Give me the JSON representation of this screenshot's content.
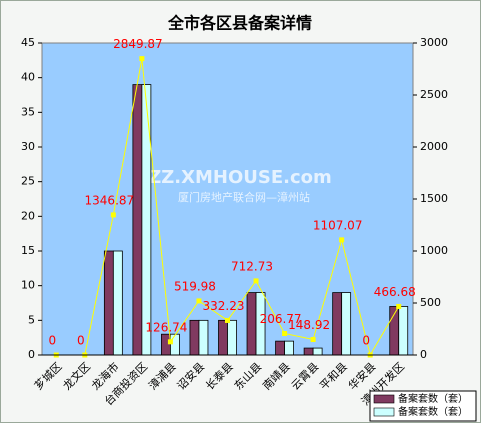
{
  "chart_data": {
    "type": "bar_line",
    "title": "全市各区县备案详情",
    "watermark": [
      "ZZ.XMHOUSE.com",
      "厦门房地产联合网—漳州站"
    ],
    "categories": [
      "芗城区",
      "龙文区",
      "龙海市",
      "台商投资区",
      "漳浦县",
      "诏安县",
      "长泰县",
      "东山县",
      "南靖县",
      "云霄县",
      "平和县",
      "华安县",
      "漳州开发区"
    ],
    "series": [
      {
        "name": "备案套数（套）",
        "type": "bar",
        "color": "#803a60",
        "values": [
          0,
          0,
          15,
          39,
          3,
          5,
          5,
          9,
          2,
          1,
          9,
          0,
          7
        ]
      },
      {
        "name": "备案套数（套）",
        "type": "bar",
        "color": "#ccffff",
        "values": [
          0,
          0,
          15,
          39,
          3,
          5,
          5,
          9,
          2,
          1,
          9,
          0,
          7
        ]
      },
      {
        "type": "line",
        "axis": "y2",
        "color": "#ffff00",
        "label_color": "#ff0000",
        "values": [
          0,
          0,
          1346.87,
          2849.87,
          126.74,
          519.98,
          332.23,
          712.73,
          206.77,
          148.92,
          1107.07,
          0,
          466.68
        ]
      }
    ],
    "ylim": [
      0,
      45
    ],
    "yticks": [
      0,
      5,
      10,
      15,
      20,
      25,
      30,
      35,
      40,
      45
    ],
    "y2lim": [
      0,
      3000
    ],
    "y2ticks": [
      0,
      500,
      1000,
      1500,
      2000,
      2500,
      3000
    ],
    "legend": "bottom-right"
  }
}
